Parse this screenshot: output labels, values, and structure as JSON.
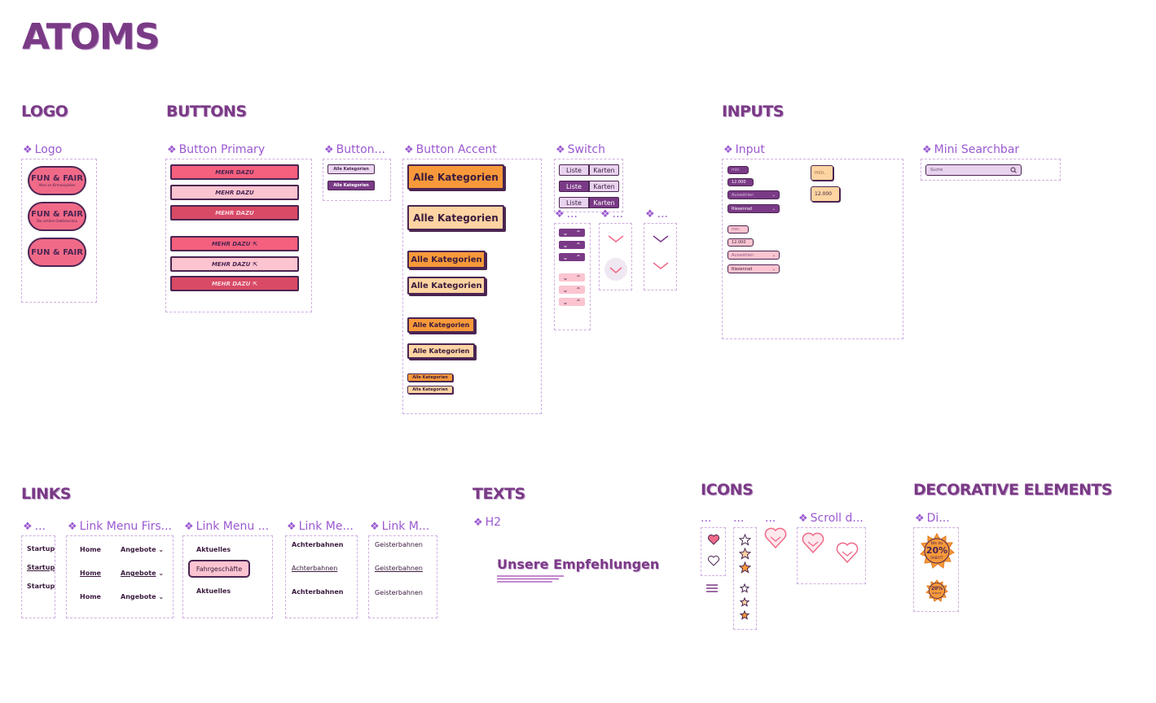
{
  "page_title": "ATOMS",
  "sections": {
    "logo": "LOGO",
    "buttons": "BUTTONS",
    "inputs": "INPUTS",
    "links": "LINKS",
    "texts": "TEXTS",
    "icons": "ICONS",
    "decorative": "DECORATIVE ELEMENTS"
  },
  "components": {
    "logo": "Logo",
    "button_primary": "Button Primary",
    "button_small": "Button...",
    "button_accent": "Button Accent",
    "switch": "Switch",
    "ellipsis": "...",
    "input": "Input",
    "mini_searchbar": "Mini Searchbar",
    "link_first": "...",
    "link_menu_first": "Link Menu Firs...",
    "link_menu": "Link Menu ...",
    "link_me": "Link Me...",
    "link_m": "Link M...",
    "h2": "H2",
    "scroll": "Scroll d...",
    "di": "Di..."
  },
  "logo": {
    "name": "FUN & FAIR",
    "sub1": "Alles an Kirmesspielen",
    "sub2": "Die schöne Gebäckschau"
  },
  "primary_label": "MEHR DAZU",
  "small_label": "Alle Kategorien",
  "accent_label": "Alle Kategorien",
  "switch": {
    "a": "Liste",
    "b": "Karten"
  },
  "input": {
    "min": "min.",
    "value": "12.000",
    "select_placeholder": "Auswählen",
    "select_value": "Riesenrad"
  },
  "search": {
    "placeholder": "Suche"
  },
  "links": {
    "startup": "Startup",
    "home": "Home",
    "angebote": "Angebote",
    "aktuelles": "Aktuelles",
    "fahrgeschaefte": "Fahrgeschäfte",
    "achterbahnen": "Achterbahnen",
    "geisterbahnen": "Geisterbahnen"
  },
  "h2_text": "Unsere Empfehlungen",
  "badge": {
    "top": "bis zu",
    "pct": "20%",
    "bottom": "RABATT"
  },
  "colors": {
    "purple": "#7a3a86",
    "pink": "#f4607e",
    "orange": "#f7993a",
    "dark": "#4b2552"
  }
}
